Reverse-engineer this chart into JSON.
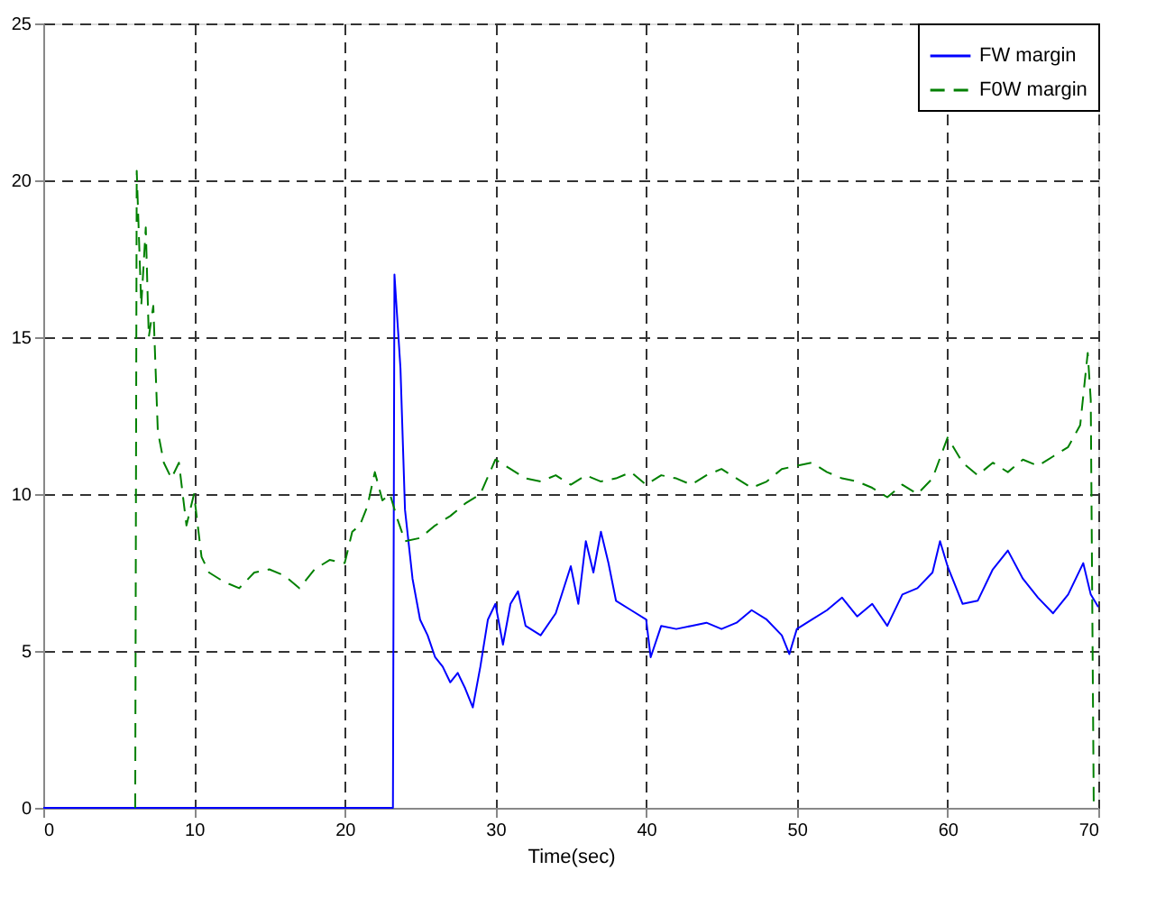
{
  "chart_data": {
    "type": "line",
    "xlabel": "Time(sec)",
    "xlim": [
      0,
      70
    ],
    "xticks": [
      0,
      10,
      20,
      30,
      40,
      50,
      60,
      70
    ],
    "ylim": [
      0,
      25
    ],
    "yticks": [
      0,
      5,
      10,
      15,
      20,
      25
    ],
    "grid": true,
    "legend": "top right",
    "marker": "none",
    "series": [
      {
        "name": "FW margin",
        "color": "#0000ff",
        "line_style": "solid",
        "x": [
          0,
          23.2,
          23.3,
          23.7,
          24,
          24.5,
          25,
          25.5,
          26,
          26.5,
          27,
          27.5,
          28,
          28.5,
          29,
          29.5,
          30,
          30.5,
          31,
          31.5,
          32,
          33,
          34,
          35,
          35.5,
          36,
          36.5,
          37,
          37.5,
          38,
          39,
          40,
          40.3,
          41,
          42,
          43,
          44,
          45,
          46,
          47,
          48,
          49,
          49.5,
          50,
          51,
          52,
          53,
          54,
          55,
          56,
          57,
          58,
          59,
          59.5,
          60,
          61,
          62,
          63,
          64,
          65,
          66,
          67,
          68,
          69,
          69.5,
          70
        ],
        "values": [
          0,
          0,
          17,
          14,
          9.5,
          7.3,
          6.0,
          5.5,
          4.8,
          4.5,
          4.0,
          4.3,
          3.8,
          3.2,
          4.5,
          6.0,
          6.5,
          5.2,
          6.5,
          6.9,
          5.8,
          5.5,
          6.2,
          7.7,
          6.5,
          8.5,
          7.5,
          8.8,
          7.8,
          6.6,
          6.3,
          6.0,
          4.8,
          5.8,
          5.7,
          5.8,
          5.9,
          5.7,
          5.9,
          6.3,
          6.0,
          5.5,
          4.9,
          5.7,
          6.0,
          6.3,
          6.7,
          6.1,
          6.5,
          5.8,
          6.8,
          7.0,
          7.5,
          8.5,
          7.7,
          6.5,
          6.6,
          7.6,
          8.2,
          7.3,
          6.7,
          6.2,
          6.8,
          7.8,
          6.8,
          6.4
        ]
      },
      {
        "name": "F0W margin",
        "color": "#008000",
        "line_style": "dashed",
        "x": [
          6.1,
          6.2,
          6.5,
          6.8,
          7.0,
          7.3,
          7.6,
          8,
          8.5,
          9,
          9.5,
          10,
          10.5,
          11,
          12,
          13,
          14,
          15,
          16,
          17,
          18,
          19,
          20,
          20.5,
          21,
          21.5,
          22,
          22.5,
          23,
          23.5,
          24,
          25,
          26,
          27,
          28,
          29,
          30,
          31,
          32,
          33,
          34,
          35,
          36,
          37,
          38,
          39,
          40,
          41,
          42,
          43,
          44,
          45,
          46,
          47,
          48,
          49,
          50,
          51,
          52,
          53,
          54,
          55,
          56,
          57,
          58,
          59,
          60,
          61,
          62,
          63,
          64,
          65,
          66,
          67,
          68,
          68.8,
          69.3,
          69.5,
          69.7
        ],
        "values": [
          0,
          20.3,
          16,
          18.5,
          15,
          16,
          12,
          11,
          10.5,
          11,
          9,
          10,
          8,
          7.5,
          7.2,
          7.0,
          7.5,
          7.6,
          7.4,
          7.0,
          7.6,
          7.9,
          7.8,
          8.8,
          9.0,
          9.6,
          10.7,
          9.8,
          10.0,
          9.2,
          8.5,
          8.6,
          9.0,
          9.3,
          9.7,
          10.0,
          11.1,
          10.8,
          10.5,
          10.4,
          10.6,
          10.3,
          10.6,
          10.4,
          10.5,
          10.7,
          10.3,
          10.6,
          10.5,
          10.3,
          10.6,
          10.8,
          10.5,
          10.2,
          10.4,
          10.8,
          10.9,
          11.0,
          10.7,
          10.5,
          10.4,
          10.2,
          9.9,
          10.3,
          10.0,
          10.5,
          11.8,
          11.0,
          10.6,
          11.0,
          10.7,
          11.1,
          10.9,
          11.2,
          11.5,
          12.2,
          14.5,
          13,
          0
        ]
      }
    ]
  }
}
